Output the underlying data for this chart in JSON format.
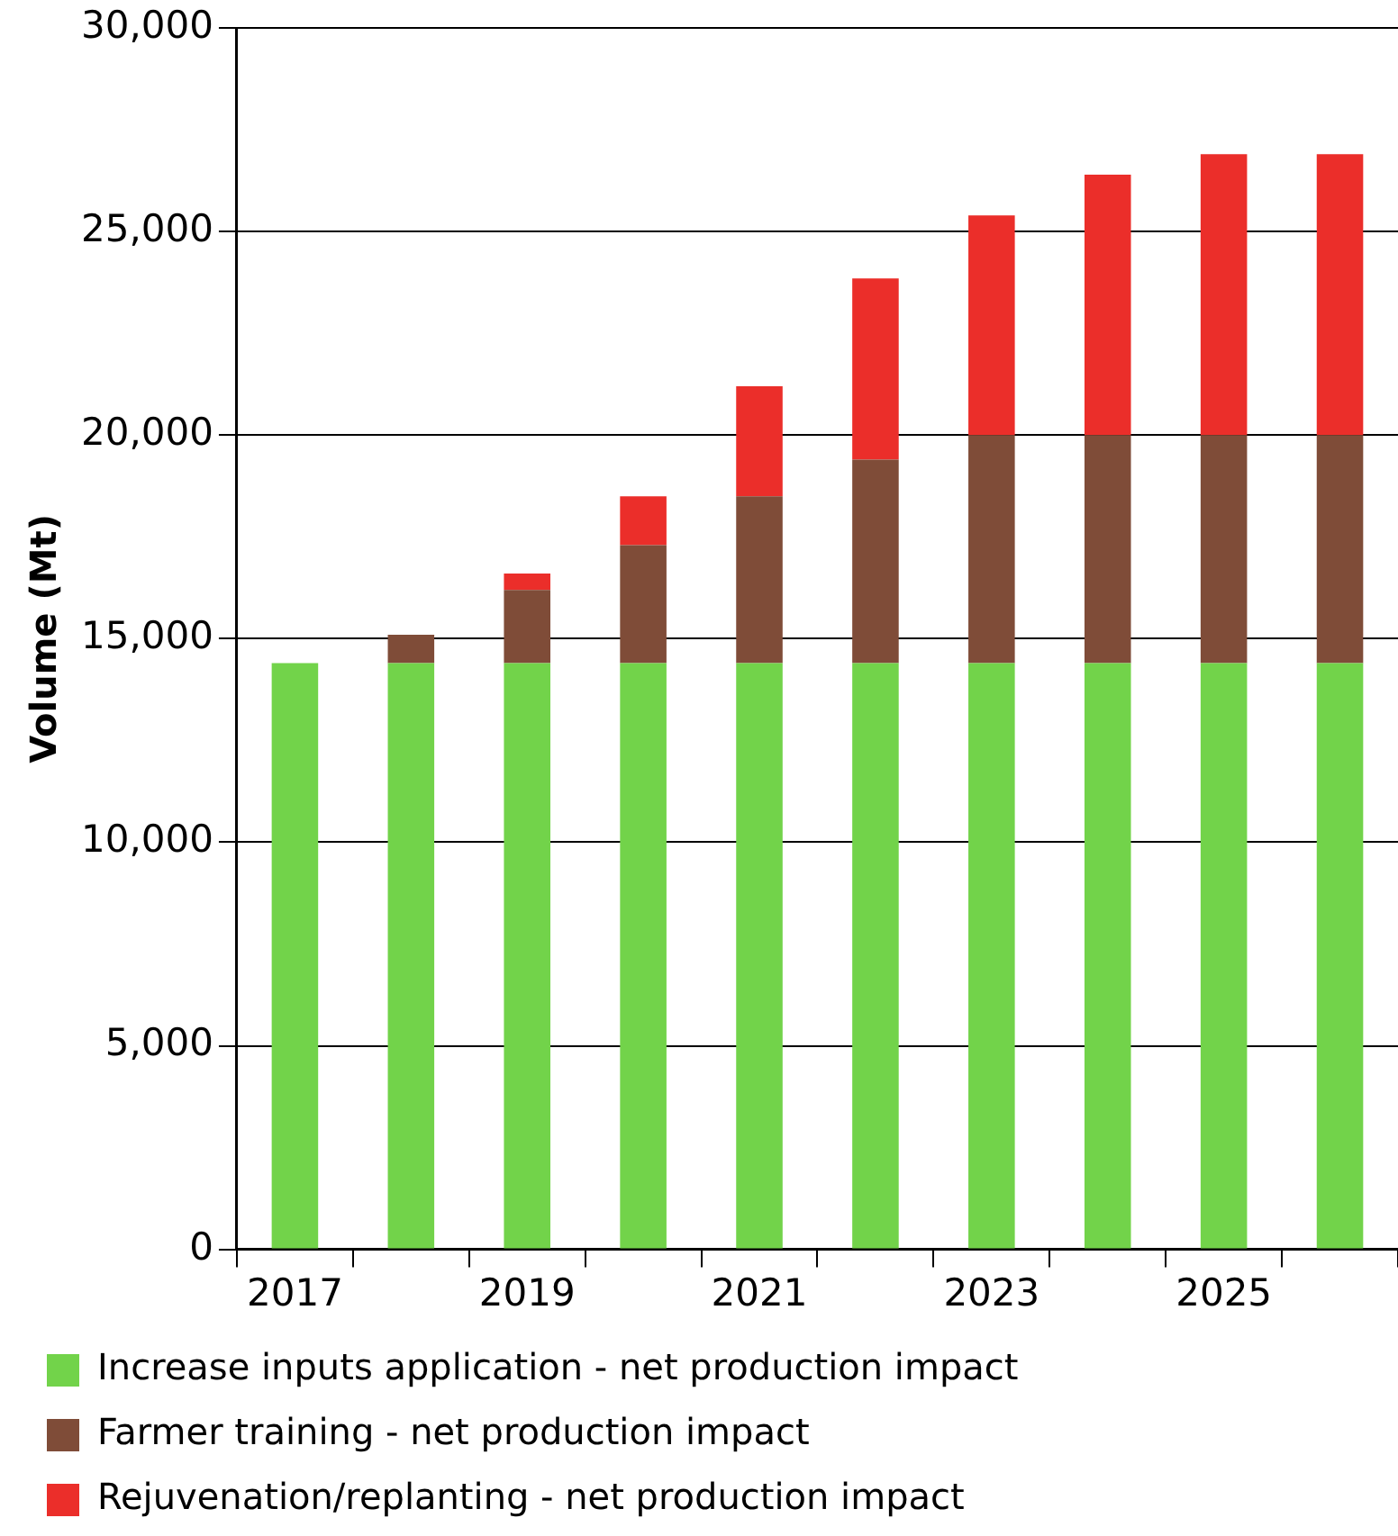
{
  "chart_data": {
    "type": "bar",
    "stacked": true,
    "ylabel": "Volume (Mt)",
    "categories": [
      "2017",
      null,
      "2019",
      null,
      "2021",
      null,
      "2023",
      null,
      "2025",
      null
    ],
    "series": [
      {
        "name": "Increase inputs application - net production impact",
        "color": "#72d34a",
        "values": [
          14400,
          14400,
          14400,
          14400,
          14400,
          14400,
          14400,
          14400,
          14400,
          14400
        ]
      },
      {
        "name": "Farmer training - net production impact",
        "color": "#7f4c38",
        "values": [
          0,
          700,
          1800,
          2900,
          4100,
          5000,
          5600,
          5600,
          5600,
          5600
        ]
      },
      {
        "name": "Rejuvenation/replanting - net production impact",
        "color": "#eb2e2a",
        "values": [
          0,
          0,
          400,
          1200,
          2700,
          4450,
          5400,
          6400,
          6900,
          6900
        ]
      }
    ],
    "ylim": [
      0,
      30000
    ],
    "yticks": [
      0,
      {
        "value": 5000,
        "label": "5,000"
      },
      {
        "value": 10000,
        "label": "10,000"
      },
      {
        "value": 15000,
        "label": "15,000"
      },
      {
        "value": 20000,
        "label": "20,000"
      },
      {
        "value": 25000,
        "label": "25,000"
      },
      {
        "value": 30000,
        "label": "30,000"
      }
    ],
    "grid": "y",
    "legend": "bottom"
  }
}
